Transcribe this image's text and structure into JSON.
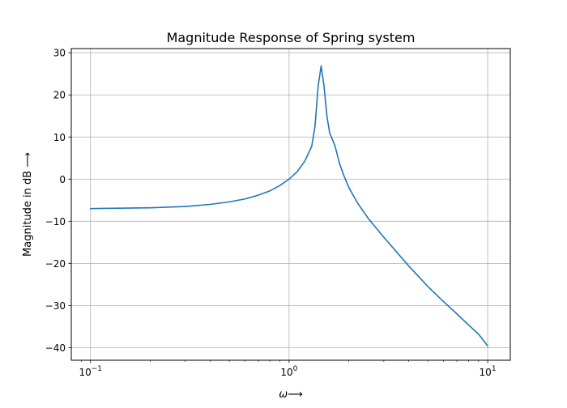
{
  "chart_data": {
    "type": "line",
    "title": "Magnitude Response of Spring system",
    "xlabel": "ω⟶",
    "ylabel": "Magnitude in dB ⟶",
    "xscale": "log",
    "xlim": [
      0.08,
      13
    ],
    "ylim": [
      -43,
      31
    ],
    "grid": true,
    "x_ticks": [
      {
        "value": 0.1,
        "base": "10",
        "exp": "−1"
      },
      {
        "value": 1,
        "base": "10",
        "exp": "0"
      },
      {
        "value": 10,
        "base": "10",
        "exp": "1"
      }
    ],
    "y_ticks": [
      {
        "value": 30,
        "label": "30"
      },
      {
        "value": 20,
        "label": "20"
      },
      {
        "value": 10,
        "label": "10"
      },
      {
        "value": 0,
        "label": "0"
      },
      {
        "value": -10,
        "label": "−10"
      },
      {
        "value": -20,
        "label": "−20"
      },
      {
        "value": -30,
        "label": "−30"
      },
      {
        "value": -40,
        "label": "−40"
      }
    ],
    "series": [
      {
        "color": "#1f77b4",
        "x": [
          0.1,
          0.2,
          0.3,
          0.4,
          0.5,
          0.6,
          0.7,
          0.8,
          0.9,
          1.0,
          1.1,
          1.2,
          1.3,
          1.35,
          1.4,
          1.45,
          1.5,
          1.55,
          1.6,
          1.7,
          1.8,
          1.9,
          2.0,
          2.2,
          2.5,
          3.0,
          4.0,
          5.0,
          6.0,
          7.0,
          8.0,
          9.0,
          10.0
        ],
        "y": [
          -7.0,
          -6.8,
          -6.5,
          -6.0,
          -5.4,
          -4.7,
          -3.8,
          -2.8,
          -1.5,
          0.0,
          1.8,
          4.3,
          7.8,
          12.5,
          22.0,
          26.9,
          22.0,
          15.0,
          11.0,
          8.0,
          3.5,
          0.5,
          -2.0,
          -5.5,
          -9.3,
          -13.8,
          -20.6,
          -25.5,
          -29.1,
          -32.0,
          -34.6,
          -36.8,
          -39.6
        ]
      }
    ]
  }
}
